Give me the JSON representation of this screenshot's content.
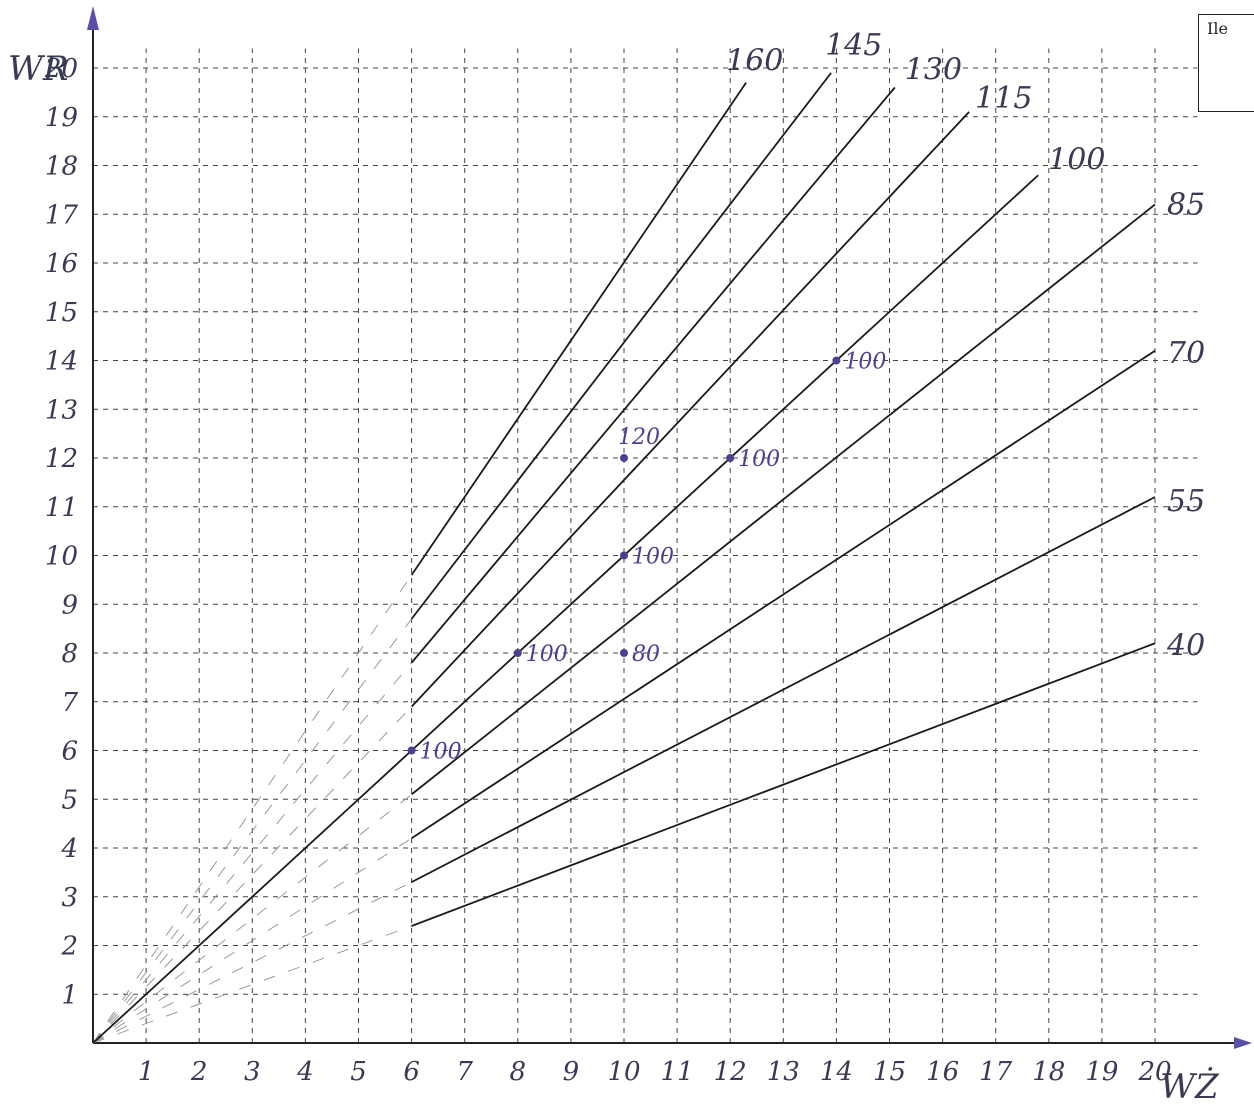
{
  "chart_data": {
    "type": "line",
    "xlabel": "WŻ",
    "ylabel": "WR",
    "xlim": [
      0,
      20
    ],
    "ylim": [
      0,
      20
    ],
    "x_ticks": [
      "1",
      "2",
      "3",
      "4",
      "5",
      "6",
      "7",
      "8",
      "9",
      "10",
      "11",
      "12",
      "13",
      "14",
      "15",
      "16",
      "17",
      "18",
      "19",
      "20"
    ],
    "y_ticks": [
      "1",
      "2",
      "3",
      "4",
      "5",
      "6",
      "7",
      "8",
      "9",
      "10",
      "11",
      "12",
      "13",
      "14",
      "15",
      "16",
      "17",
      "18",
      "19",
      "20"
    ],
    "grid": true,
    "series": [
      {
        "name": "160",
        "x": [
          6,
          12.3
        ],
        "y": [
          9.6,
          19.7
        ]
      },
      {
        "name": "145",
        "x": [
          6,
          13.9
        ],
        "y": [
          8.7,
          19.9
        ]
      },
      {
        "name": "130",
        "x": [
          6,
          15.1
        ],
        "y": [
          7.8,
          19.6
        ]
      },
      {
        "name": "115",
        "x": [
          6,
          16.5
        ],
        "y": [
          6.9,
          19.1
        ]
      },
      {
        "name": "100",
        "x": [
          0,
          17.8
        ],
        "y": [
          0,
          17.8
        ]
      },
      {
        "name": "85",
        "x": [
          6,
          20
        ],
        "y": [
          5.1,
          17.2
        ]
      },
      {
        "name": "70",
        "x": [
          6,
          20
        ],
        "y": [
          4.2,
          14.2
        ]
      },
      {
        "name": "55",
        "x": [
          6,
          20
        ],
        "y": [
          3.3,
          11.2
        ]
      },
      {
        "name": "40",
        "x": [
          6,
          20
        ],
        "y": [
          2.4,
          8.2
        ]
      }
    ],
    "points": [
      {
        "x": 6,
        "y": 6,
        "label": "100"
      },
      {
        "x": 8,
        "y": 8,
        "label": "100"
      },
      {
        "x": 10,
        "y": 10,
        "label": "100"
      },
      {
        "x": 12,
        "y": 12,
        "label": "100"
      },
      {
        "x": 14,
        "y": 14,
        "label": "100"
      },
      {
        "x": 10,
        "y": 12,
        "label": "120"
      },
      {
        "x": 10,
        "y": 8,
        "label": "80"
      }
    ]
  },
  "corner_box": {
    "text": "Ile"
  },
  "colors": {
    "line": "#1a1a1a",
    "grid": "#444444",
    "axis": "#5a4fa8",
    "point": "#4b3f8f"
  }
}
